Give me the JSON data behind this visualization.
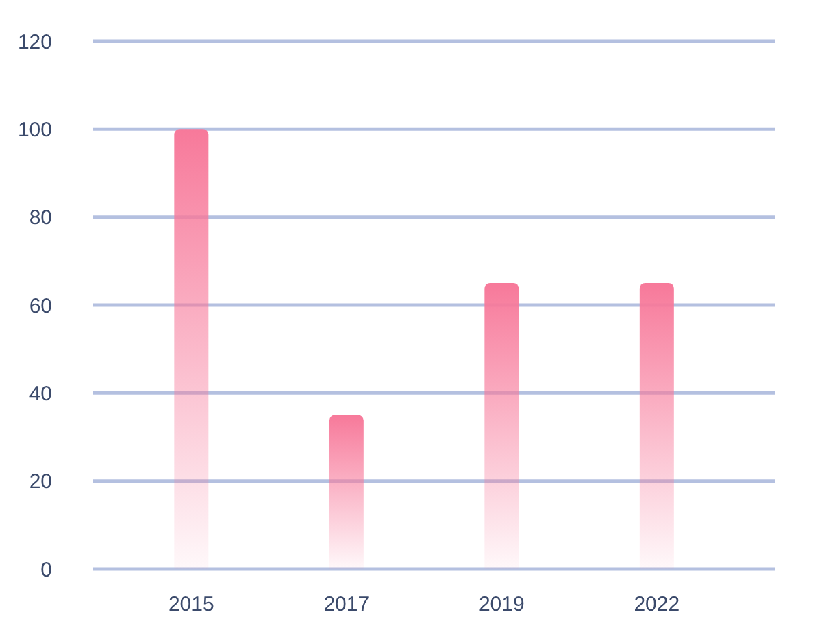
{
  "chart_data": {
    "type": "bar",
    "categories": [
      "2015",
      "2017",
      "2019",
      "2022"
    ],
    "values": [
      100,
      35,
      65,
      65
    ],
    "color": "#f7799a",
    "ylim": [
      0,
      120
    ],
    "yticks": [
      0,
      20,
      40,
      60,
      80,
      100,
      120
    ],
    "grid": "y"
  }
}
